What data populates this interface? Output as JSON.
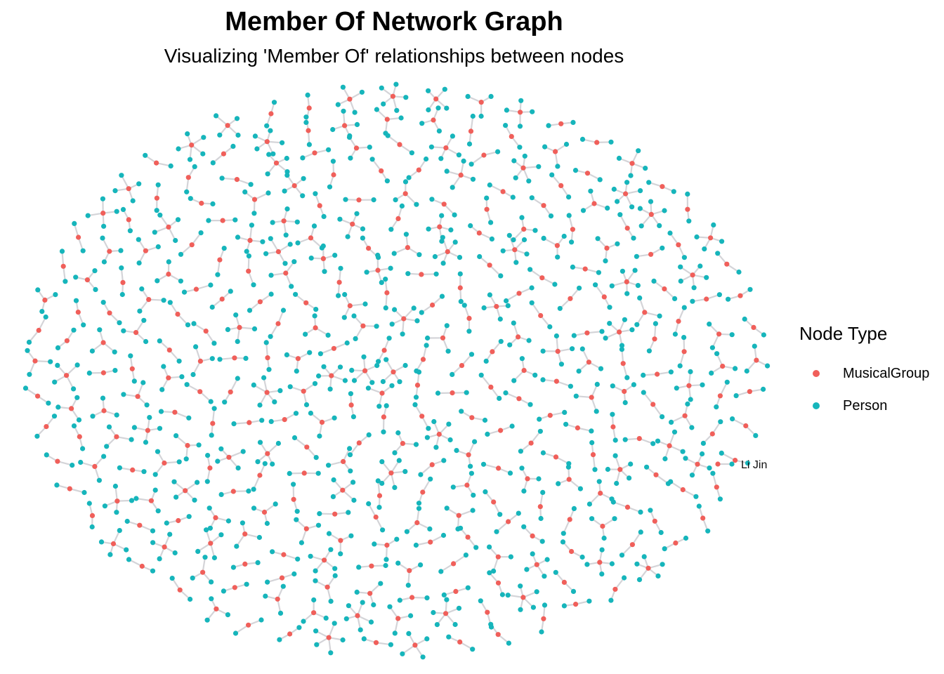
{
  "title": "Member Of Network Graph",
  "subtitle": "Visualizing 'Member Of' relationships between nodes",
  "legend": {
    "title": "Node Type",
    "items": [
      {
        "label": "MusicalGroup",
        "color": "#F05F5A"
      },
      {
        "label": "Person",
        "color": "#16B5BB"
      }
    ]
  },
  "edge_color": "#D4D4D8",
  "labeled_node": {
    "text": "Li Jin"
  }
}
